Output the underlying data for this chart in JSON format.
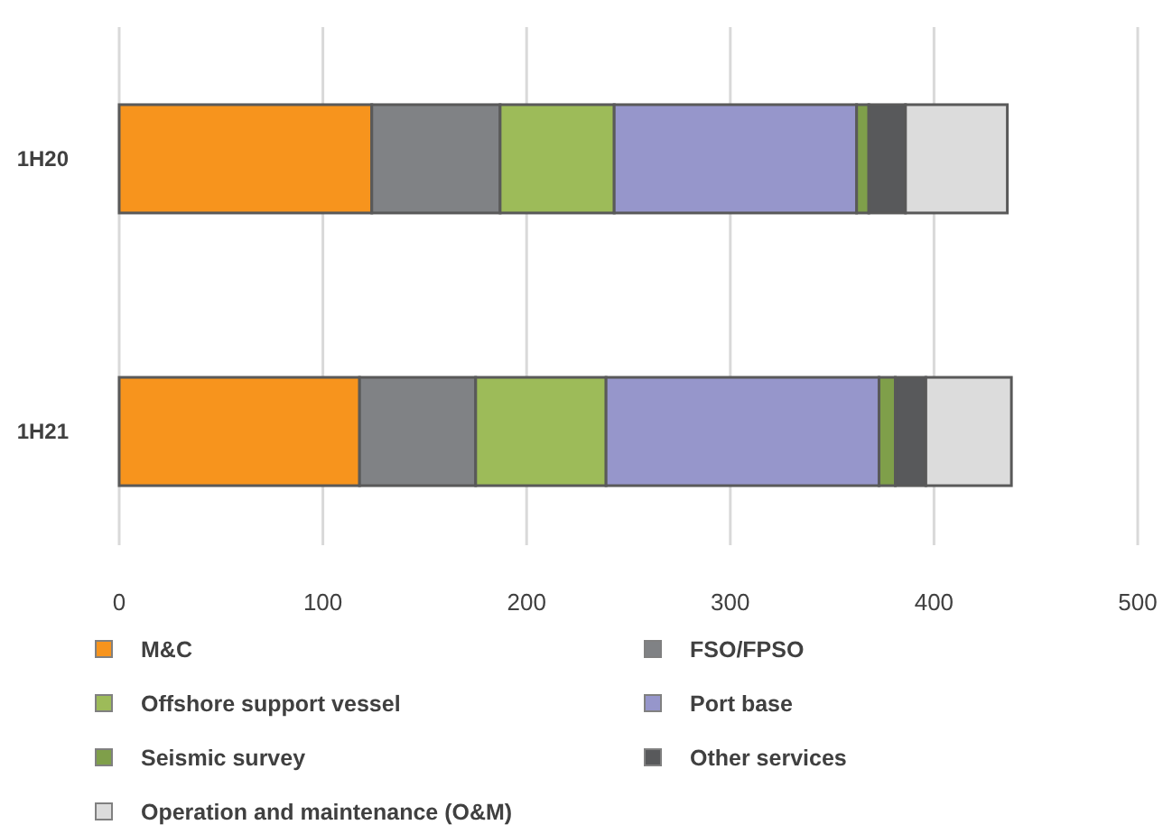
{
  "chart_data": {
    "type": "bar",
    "orientation": "horizontal",
    "stacked": true,
    "categories": [
      "1H20",
      "1H21"
    ],
    "series": [
      {
        "name": "M&C",
        "color": "#f7941d",
        "values": [
          124,
          118
        ]
      },
      {
        "name": "FSO/FPSO",
        "color": "#808285",
        "values": [
          63,
          57
        ]
      },
      {
        "name": "Offshore support vessel",
        "color": "#9dbb59",
        "values": [
          56,
          64
        ]
      },
      {
        "name": "Port base",
        "color": "#9696cb",
        "values": [
          119,
          134
        ]
      },
      {
        "name": "Seismic survey",
        "color": "#7f9f4a",
        "values": [
          6,
          8
        ]
      },
      {
        "name": "Other services",
        "color": "#58595b",
        "values": [
          18,
          15
        ]
      },
      {
        "name": "Operation and maintenance (O&M)",
        "color": "#dcdcdc",
        "values": [
          50,
          42
        ]
      }
    ],
    "xlim": [
      0,
      500
    ],
    "xticks": [
      0,
      100,
      200,
      300,
      400,
      500
    ],
    "grid": "x",
    "legend": "bottom"
  }
}
